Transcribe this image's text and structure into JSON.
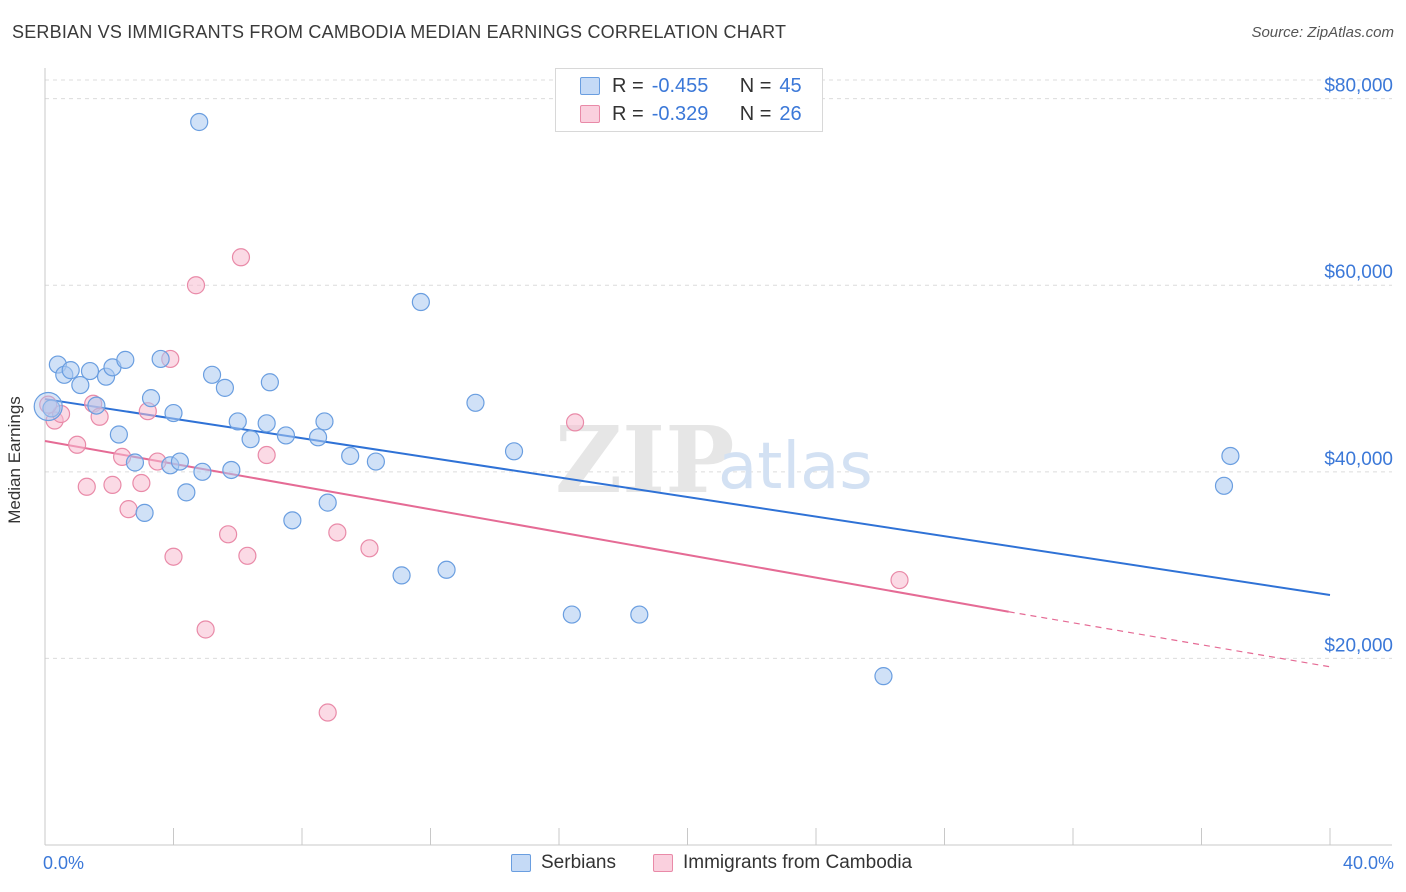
{
  "title": "SERBIAN VS IMMIGRANTS FROM CAMBODIA MEDIAN EARNINGS CORRELATION CHART",
  "source": "Source: ZipAtlas.com",
  "watermark": {
    "zip": "ZIP",
    "atlas": "atlas"
  },
  "legend": {
    "r_label": "R =",
    "n_label": "N =",
    "rows": [
      {
        "r": "-0.455",
        "n": "45"
      },
      {
        "r": "-0.329",
        "n": "26"
      }
    ]
  },
  "x_axis": {
    "min_label": "0.0%",
    "max_label": "40.0%"
  },
  "colors": {
    "blue_fill": "#aac8f0",
    "blue_stroke": "#6a9ee0",
    "blue_line": "#2f72d6",
    "pink_fill": "#f7bccf",
    "pink_stroke": "#e98aa8",
    "pink_line": "#e56b95",
    "grid": "#dcdcdc",
    "tick_text": "#3b78d8"
  },
  "chart_data": {
    "type": "scatter",
    "title": "SERBIAN VS IMMIGRANTS FROM CAMBODIA MEDIAN EARNINGS CORRELATION CHART",
    "xlabel": "",
    "ylabel": "Median Earnings",
    "xlim": [
      0,
      40
    ],
    "ylim": [
      0,
      82000
    ],
    "y_ticks": [
      {
        "value": 20000,
        "label": "$20,000"
      },
      {
        "value": 40000,
        "label": "$40,000"
      },
      {
        "value": 60000,
        "label": "$60,000"
      },
      {
        "value": 80000,
        "label": "$80,000"
      }
    ],
    "grid": true,
    "legend_position": "top-center",
    "series": [
      {
        "name": "Serbians",
        "color": "#6a9ee0",
        "points": [
          [
            0.2,
            46800
          ],
          [
            0.4,
            51500
          ],
          [
            0.6,
            50400
          ],
          [
            0.8,
            50900
          ],
          [
            1.1,
            49300
          ],
          [
            1.4,
            50800
          ],
          [
            1.6,
            47100
          ],
          [
            1.9,
            50200
          ],
          [
            2.1,
            51200
          ],
          [
            2.3,
            44000
          ],
          [
            2.5,
            52000
          ],
          [
            2.8,
            41000
          ],
          [
            3.1,
            35600
          ],
          [
            3.3,
            47900
          ],
          [
            3.6,
            52100
          ],
          [
            3.9,
            40700
          ],
          [
            4.0,
            46300
          ],
          [
            4.2,
            41100
          ],
          [
            4.4,
            37800
          ],
          [
            4.8,
            77500
          ],
          [
            4.9,
            40000
          ],
          [
            5.2,
            50400
          ],
          [
            5.6,
            49000
          ],
          [
            5.8,
            40200
          ],
          [
            6.0,
            45400
          ],
          [
            6.4,
            43500
          ],
          [
            6.9,
            45200
          ],
          [
            7.0,
            49600
          ],
          [
            7.5,
            43900
          ],
          [
            7.7,
            34800
          ],
          [
            8.5,
            43700
          ],
          [
            8.7,
            45400
          ],
          [
            8.8,
            36700
          ],
          [
            9.5,
            41700
          ],
          [
            10.3,
            41100
          ],
          [
            11.1,
            28900
          ],
          [
            11.7,
            58200
          ],
          [
            12.5,
            29500
          ],
          [
            13.4,
            47400
          ],
          [
            14.6,
            42200
          ],
          [
            16.4,
            24700
          ],
          [
            18.5,
            24700
          ],
          [
            26.1,
            18100
          ],
          [
            36.7,
            38500
          ],
          [
            36.9,
            41700
          ]
        ],
        "trend": {
          "x1": 0,
          "y1": 47800,
          "x2": 40,
          "y2": 26800
        }
      },
      {
        "name": "Immigrants from Cambodia",
        "color": "#e98aa8",
        "points": [
          [
            0.3,
            45500
          ],
          [
            0.5,
            46200
          ],
          [
            1.0,
            42900
          ],
          [
            1.3,
            38400
          ],
          [
            1.5,
            47300
          ],
          [
            1.7,
            45900
          ],
          [
            2.1,
            38600
          ],
          [
            2.4,
            41600
          ],
          [
            2.6,
            36000
          ],
          [
            3.0,
            38800
          ],
          [
            3.2,
            46500
          ],
          [
            3.5,
            41100
          ],
          [
            3.9,
            52100
          ],
          [
            4.0,
            30900
          ],
          [
            4.7,
            60000
          ],
          [
            5.0,
            23100
          ],
          [
            5.7,
            33300
          ],
          [
            6.1,
            63000
          ],
          [
            6.3,
            31000
          ],
          [
            6.9,
            41800
          ],
          [
            8.8,
            14200
          ],
          [
            9.1,
            33500
          ],
          [
            10.1,
            31800
          ],
          [
            16.5,
            45300
          ],
          [
            26.6,
            28400
          ],
          [
            0.1,
            47200
          ]
        ],
        "trend": {
          "x1": 0,
          "y1": 43300,
          "x2": 30,
          "y2": 25000,
          "dash_to": {
            "x": 40,
            "y": 19100
          }
        }
      }
    ]
  }
}
